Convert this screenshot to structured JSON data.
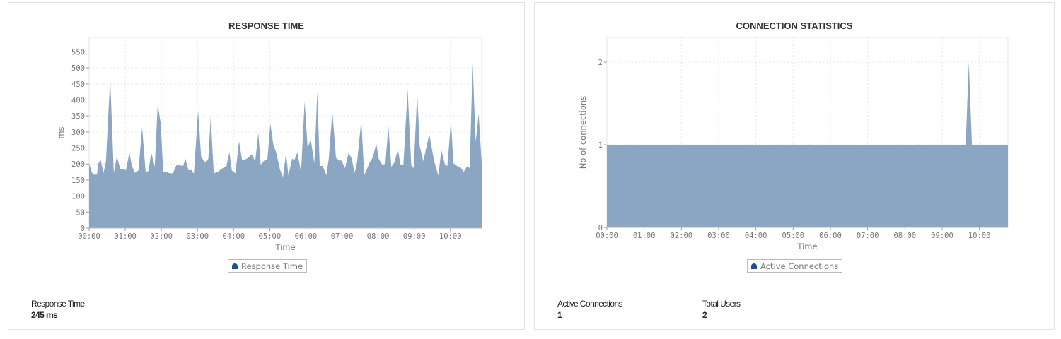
{
  "chart_data": [
    {
      "type": "area",
      "title": "RESPONSE TIME",
      "xlabel": "Time",
      "ylabel": "ms",
      "ylim": [
        0,
        595
      ],
      "xlim": [
        "00:00",
        "10:52"
      ],
      "yticks": [
        "0",
        "50",
        "100",
        "150",
        "200",
        "250",
        "300",
        "350",
        "400",
        "450",
        "500",
        "550"
      ],
      "xticks": [
        "00:00",
        "01:00",
        "02:00",
        "03:00",
        "04:00",
        "05:00",
        "06:00",
        "07:00",
        "08:00",
        "09:00",
        "10:00"
      ],
      "grid": true,
      "legend": "bottom",
      "color": "#8ba6c3",
      "series": [
        {
          "name": "Response Time",
          "x": [
            "00:00",
            "00:05",
            "00:08",
            "00:13",
            "00:15",
            "00:19",
            "00:24",
            "00:28",
            "00:35",
            "00:41",
            "00:46",
            "00:52",
            "00:57",
            "01:01",
            "01:07",
            "01:11",
            "01:16",
            "01:22",
            "01:28",
            "01:34",
            "01:39",
            "01:43",
            "01:49",
            "01:54",
            "01:59",
            "02:03",
            "02:10",
            "02:14",
            "02:19",
            "02:25",
            "02:31",
            "02:36",
            "02:40",
            "02:45",
            "02:50",
            "02:54",
            "03:01",
            "03:06",
            "03:12",
            "03:18",
            "03:22",
            "03:27",
            "03:34",
            "03:41",
            "03:48",
            "03:53",
            "03:57",
            "04:03",
            "04:09",
            "04:14",
            "04:18",
            "04:23",
            "04:30",
            "04:36",
            "04:41",
            "04:45",
            "04:51",
            "04:56",
            "05:01",
            "05:06",
            "05:11",
            "05:17",
            "05:22",
            "05:27",
            "05:31",
            "05:37",
            "05:41",
            "05:46",
            "05:52",
            "05:58",
            "06:03",
            "06:08",
            "06:14",
            "06:19",
            "06:23",
            "06:28",
            "06:34",
            "06:38",
            "06:44",
            "06:50",
            "06:55",
            "06:59",
            "07:05",
            "07:11",
            "07:16",
            "07:21",
            "07:25",
            "07:32",
            "07:37",
            "07:46",
            "07:51",
            "07:57",
            "08:01",
            "08:07",
            "08:12",
            "08:17",
            "08:22",
            "08:27",
            "08:33",
            "08:37",
            "08:42",
            "08:49",
            "08:55",
            "08:59",
            "09:05",
            "09:09",
            "09:15",
            "09:25",
            "09:33",
            "09:40",
            "09:45",
            "09:51",
            "09:55",
            "10:01",
            "10:05",
            "10:11",
            "10:17",
            "10:22",
            "10:28",
            "10:32",
            "10:37",
            "10:42",
            "10:47",
            "10:52"
          ],
          "values": [
            200,
            172,
            167,
            167,
            200,
            214,
            172,
            209,
            466,
            172,
            224,
            183,
            185,
            180,
            235,
            194,
            172,
            180,
            315,
            172,
            180,
            237,
            191,
            386,
            326,
            176,
            174,
            171,
            171,
            196,
            196,
            194,
            216,
            181,
            181,
            170,
            367,
            224,
            205,
            216,
            348,
            171,
            176,
            186,
            194,
            237,
            180,
            171,
            271,
            213,
            213,
            218,
            230,
            209,
            297,
            198,
            211,
            213,
            326,
            260,
            235,
            183,
            159,
            235,
            164,
            216,
            213,
            236,
            174,
            396,
            249,
            277,
            202,
            425,
            194,
            194,
            165,
            216,
            363,
            220,
            211,
            211,
            187,
            235,
            218,
            172,
            205,
            337,
            165,
            205,
            220,
            264,
            216,
            198,
            200,
            318,
            191,
            205,
            246,
            198,
            198,
            433,
            196,
            187,
            420,
            257,
            209,
            293,
            209,
            164,
            244,
            198,
            194,
            336,
            202,
            194,
            189,
            176,
            193,
            187,
            513,
            269,
            356,
            202
          ]
        }
      ]
    },
    {
      "type": "area",
      "title": "CONNECTION STATISTICS",
      "xlabel": "Time",
      "ylabel": "No of connections",
      "ylim": [
        0,
        2.3
      ],
      "xlim": [
        "00:00",
        "10:46"
      ],
      "yticks": [
        "0",
        "1",
        "2"
      ],
      "xticks": [
        "00:00",
        "01:00",
        "02:00",
        "03:00",
        "04:00",
        "05:00",
        "06:00",
        "07:00",
        "08:00",
        "09:00",
        "10:00"
      ],
      "grid": true,
      "legend": "bottom",
      "color": "#8ba6c3",
      "series": [
        {
          "name": "Active Connections",
          "x": [
            "00:00",
            "09:38",
            "09:43",
            "09:48",
            "10:46"
          ],
          "values": [
            1,
            1,
            2,
            1,
            1
          ]
        }
      ]
    }
  ],
  "stats": {
    "response_time": {
      "label": "Response Time",
      "value": "245 ms"
    },
    "active_connections": {
      "label": "Active Connections",
      "value": "1"
    },
    "total_users": {
      "label": "Total Users",
      "value": "2"
    }
  }
}
